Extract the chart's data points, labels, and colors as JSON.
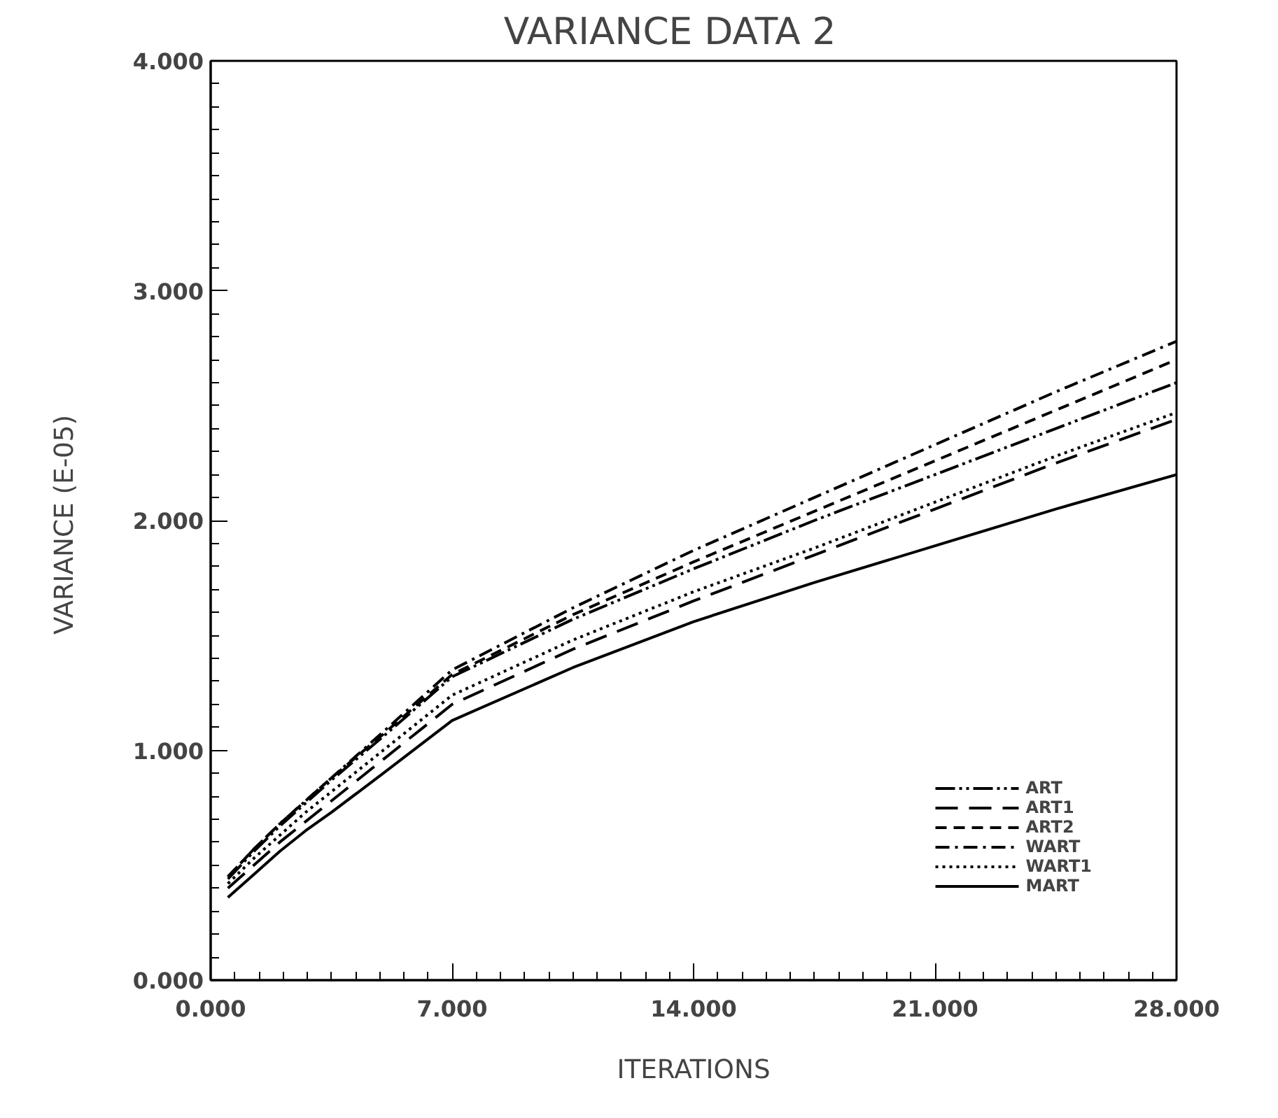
{
  "chart_data": {
    "type": "line",
    "title": "VARIANCE    DATA  2",
    "xlabel": "ITERATIONS",
    "ylabel": "VARIANCE  (E-05)",
    "x": [
      0.5,
      1.25,
      2,
      2.75,
      3.5,
      5,
      7,
      10.5,
      14,
      17.5,
      21,
      24.5,
      28
    ],
    "series": [
      {
        "name": "ART",
        "color": "#000000",
        "line_style": "dashdotdot",
        "values": [
          0.44,
          0.56,
          0.67,
          0.77,
          0.87,
          1.06,
          1.32,
          1.57,
          1.79,
          2.0,
          2.2,
          2.4,
          2.6
        ]
      },
      {
        "name": "ART1",
        "color": "#000000",
        "line_style": "longdash",
        "values": [
          0.4,
          0.5,
          0.6,
          0.69,
          0.78,
          0.96,
          1.2,
          1.44,
          1.65,
          1.85,
          2.05,
          2.25,
          2.44
        ]
      },
      {
        "name": "ART2",
        "color": "#000000",
        "line_style": "dashed",
        "values": [
          0.45,
          0.57,
          0.68,
          0.78,
          0.88,
          1.07,
          1.33,
          1.59,
          1.82,
          2.04,
          2.26,
          2.48,
          2.7
        ]
      },
      {
        "name": "WART",
        "color": "#000000",
        "line_style": "dashdot",
        "values": [
          0.45,
          0.57,
          0.68,
          0.78,
          0.88,
          1.08,
          1.35,
          1.62,
          1.87,
          2.1,
          2.33,
          2.56,
          2.78
        ]
      },
      {
        "name": "WART1",
        "color": "#000000",
        "line_style": "dotted",
        "values": [
          0.42,
          0.53,
          0.63,
          0.73,
          0.82,
          1.0,
          1.24,
          1.48,
          1.69,
          1.88,
          2.08,
          2.28,
          2.47
        ]
      },
      {
        "name": "MART",
        "color": "#000000",
        "line_style": "solid",
        "values": [
          0.36,
          0.46,
          0.56,
          0.65,
          0.73,
          0.9,
          1.13,
          1.36,
          1.56,
          1.73,
          1.89,
          2.05,
          2.2
        ]
      }
    ],
    "xlim": [
      0,
      28
    ],
    "ylim": [
      0,
      4
    ],
    "xticks": [
      {
        "value": 0,
        "label": "0.000"
      },
      {
        "value": 7,
        "label": "7.000"
      },
      {
        "value": 14,
        "label": "14.000"
      },
      {
        "value": 21,
        "label": "21.000"
      },
      {
        "value": 28,
        "label": "28.000"
      }
    ],
    "yticks": [
      {
        "value": 0,
        "label": "0.000"
      },
      {
        "value": 1,
        "label": "1.000"
      },
      {
        "value": 2,
        "label": "2.000"
      },
      {
        "value": 3,
        "label": "3.000"
      },
      {
        "value": 4,
        "label": "4.000"
      }
    ],
    "grid": false,
    "legend": "bottom right"
  }
}
